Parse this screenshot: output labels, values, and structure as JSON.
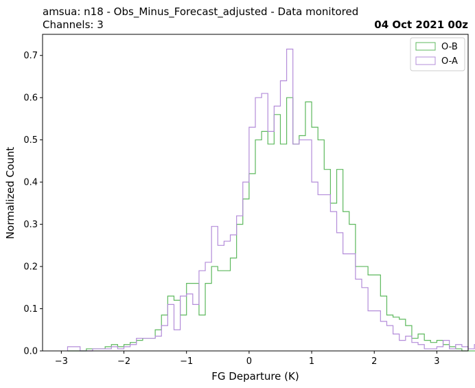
{
  "title": {
    "line1": "amsua: n18 - Obs_Minus_Forecast_adjusted - Data monitored",
    "line2": "Channels: 3",
    "date": "04 Oct 2021 00z"
  },
  "colors": {
    "ob": "#5cb85c",
    "oa": "#b38cd9",
    "frame": "#000000",
    "legend_border": "#cccccc"
  },
  "chart_data": {
    "type": "histogram",
    "xlabel": "FG Departure (K)",
    "ylabel": "Normalized Count",
    "xlim": [
      -3.3,
      3.5
    ],
    "ylim": [
      0,
      0.75
    ],
    "xticks": [
      -3,
      -2,
      -1,
      0,
      1,
      2,
      3
    ],
    "yticks": [
      0.0,
      0.1,
      0.2,
      0.3,
      0.4,
      0.5,
      0.6,
      0.7
    ],
    "xtick_labels": [
      "−3",
      "−2",
      "−1",
      "0",
      "1",
      "2",
      "3"
    ],
    "ytick_labels": [
      "0.0",
      "0.1",
      "0.2",
      "0.3",
      "0.4",
      "0.5",
      "0.6",
      "0.7"
    ],
    "legend": {
      "placement": "top-right",
      "entries": [
        "O-B",
        "O-A"
      ]
    },
    "bins": {
      "start": -2.9,
      "width": 0.1,
      "series": [
        {
          "name": "O-B",
          "values": [
            0,
            0,
            0,
            0.005,
            0.005,
            0.005,
            0.01,
            0.015,
            0.01,
            0.015,
            0.02,
            0.025,
            0.03,
            0.03,
            0.05,
            0.085,
            0.13,
            0.12,
            0.085,
            0.16,
            0.16,
            0.085,
            0.16,
            0.2,
            0.19,
            0.19,
            0.22,
            0.3,
            0.36,
            0.42,
            0.5,
            0.52,
            0.49,
            0.56,
            0.49,
            0.6,
            0.49,
            0.51,
            0.59,
            0.53,
            0.5,
            0.43,
            0.35,
            0.43,
            0.33,
            0.3,
            0.2,
            0.2,
            0.18,
            0.18,
            0.13,
            0.085,
            0.08,
            0.075,
            0.06,
            0.03,
            0.04,
            0.025,
            0.02,
            0.025,
            0.015,
            0.01,
            0.005,
            0,
            0,
            0,
            0,
            0.01,
            0.01,
            0,
            0.01
          ]
        },
        {
          "name": "O-A",
          "values": [
            0.01,
            0.01,
            0,
            0,
            0.005,
            0.005,
            0.005,
            0.01,
            0.005,
            0.01,
            0.015,
            0.03,
            0.03,
            0.03,
            0.035,
            0.06,
            0.11,
            0.05,
            0.13,
            0.135,
            0.11,
            0.19,
            0.21,
            0.295,
            0.25,
            0.26,
            0.275,
            0.32,
            0.4,
            0.53,
            0.6,
            0.61,
            0.52,
            0.58,
            0.64,
            0.715,
            0.49,
            0.5,
            0.5,
            0.4,
            0.37,
            0.37,
            0.33,
            0.28,
            0.23,
            0.23,
            0.17,
            0.15,
            0.095,
            0.095,
            0.07,
            0.06,
            0.04,
            0.025,
            0.035,
            0.02,
            0.015,
            0.005,
            0.005,
            0.01,
            0.025,
            0.005,
            0.015,
            0.01,
            0.005,
            0.015,
            0,
            0,
            0,
            0,
            0
          ]
        }
      ]
    }
  }
}
